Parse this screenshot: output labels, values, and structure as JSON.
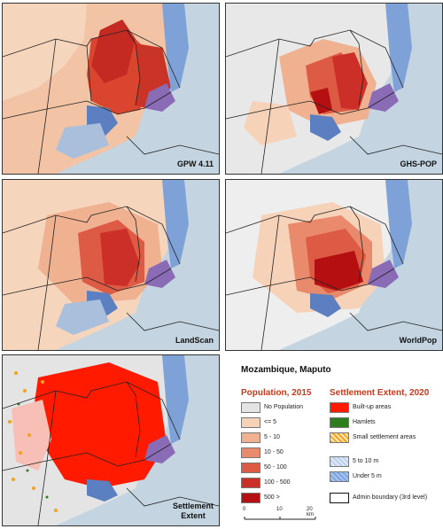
{
  "panels": [
    {
      "label": "GPW 4.11"
    },
    {
      "label": "GHS-POP"
    },
    {
      "label": "LandScan"
    },
    {
      "label": "WorldPop"
    },
    {
      "label_line1": "Settlement",
      "label_line2": "Extent"
    }
  ],
  "legend": {
    "title": "Mozambique, Maputo",
    "population": {
      "heading": "Population, 2015",
      "items": [
        {
          "label": "No Population",
          "color": "#e4e4e4"
        },
        {
          "label": "<= 5",
          "color": "#f6d2b8"
        },
        {
          "label": "5 - 10",
          "color": "#f0b191"
        },
        {
          "label": "10 - 50",
          "color": "#e88a6b"
        },
        {
          "label": "50 - 100",
          "color": "#dd5b45"
        },
        {
          "label": "100 - 500",
          "color": "#cc2f27"
        },
        {
          "label": "500 >",
          "color": "#b50f12"
        }
      ]
    },
    "settlement": {
      "heading": "Settlement Extent, 2020",
      "items": [
        {
          "label": "Built-up areas",
          "color": "#ff1a00"
        },
        {
          "label": "Hamlets",
          "color": "#2e7d1e"
        },
        {
          "label": "Small settlement areas",
          "color": "#f2a41c"
        }
      ]
    },
    "water": {
      "items": [
        {
          "label": "5 to 10 m",
          "color": "#b9d0ef"
        },
        {
          "label": "Under 5 m",
          "color": "#7da4e0"
        }
      ]
    },
    "admin": {
      "label": "Admin boundary (3rd level)"
    },
    "scale": {
      "ticks": [
        "0",
        "10",
        "20 km"
      ]
    }
  }
}
